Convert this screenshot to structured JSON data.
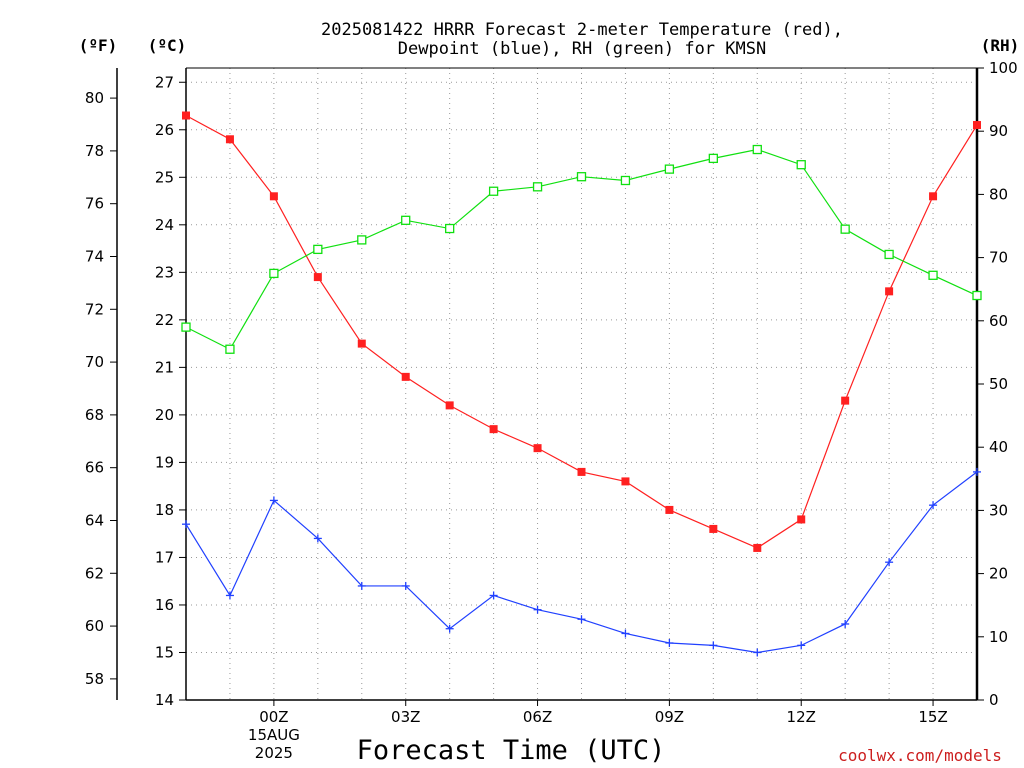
{
  "chart_data": {
    "type": "line",
    "title_line1": "2025081422 HRRR Forecast 2-meter Temperature (red),",
    "title_line2": "Dewpoint (blue), RH (green) for KMSN",
    "unit_f": "(ºF)",
    "unit_c": "(ºC)",
    "unit_rh": "(RH)",
    "xlabel": "Forecast Time (UTC)",
    "credit": "coolwx.com/models",
    "x_hours": [
      22,
      23,
      24,
      25,
      26,
      27,
      28,
      29,
      30,
      31,
      32,
      33,
      34,
      35,
      36,
      37,
      38,
      39,
      40
    ],
    "xlim": [
      22,
      40
    ],
    "x_ticks": [
      {
        "hour": 24,
        "label": "00Z",
        "sub1": "15AUG",
        "sub2": "2025"
      },
      {
        "hour": 27,
        "label": "03Z",
        "sub1": "",
        "sub2": ""
      },
      {
        "hour": 30,
        "label": "06Z",
        "sub1": "",
        "sub2": ""
      },
      {
        "hour": 33,
        "label": "09Z",
        "sub1": "",
        "sub2": ""
      },
      {
        "hour": 36,
        "label": "12Z",
        "sub1": "",
        "sub2": ""
      },
      {
        "hour": 39,
        "label": "15Z",
        "sub1": "",
        "sub2": ""
      }
    ],
    "celsius_axis": {
      "ylim": [
        14,
        27.3
      ],
      "ticks": [
        "14",
        "15",
        "16",
        "17",
        "18",
        "19",
        "20",
        "21",
        "22",
        "23",
        "24",
        "25",
        "26",
        "27"
      ]
    },
    "fahrenheit_axis": {
      "ticks": [
        "58",
        "60",
        "62",
        "64",
        "66",
        "68",
        "70",
        "72",
        "74",
        "76",
        "78",
        "80"
      ]
    },
    "rh_axis": {
      "ylim": [
        0,
        100
      ],
      "ticks": [
        "0",
        "10",
        "20",
        "30",
        "40",
        "50",
        "60",
        "70",
        "80",
        "90",
        "100"
      ]
    },
    "series": [
      {
        "name": "Temperature",
        "unit": "C",
        "color": "#ff2020",
        "marker": "filled-square",
        "values": [
          26.3,
          25.8,
          24.6,
          22.9,
          21.5,
          20.8,
          20.2,
          19.7,
          19.3,
          18.8,
          18.6,
          18.0,
          17.6,
          17.2,
          17.8,
          20.3,
          22.6,
          24.6,
          26.1
        ]
      },
      {
        "name": "Dewpoint",
        "unit": "C",
        "color": "#2040ff",
        "marker": "plus",
        "values": [
          17.7,
          16.2,
          18.2,
          17.4,
          16.4,
          16.4,
          15.5,
          16.2,
          15.9,
          15.7,
          15.4,
          15.2,
          15.15,
          15.0,
          15.15,
          15.6,
          16.9,
          18.1,
          18.8
        ]
      },
      {
        "name": "RH",
        "unit": "%",
        "color": "#10e010",
        "marker": "open-square",
        "values": [
          59,
          55.5,
          67.5,
          71.3,
          72.8,
          75.9,
          74.6,
          80.5,
          81.2,
          82.8,
          82.2,
          84,
          85.7,
          87.1,
          84.7,
          74.5,
          70.5,
          67.2,
          64
        ]
      }
    ],
    "grid": true
  }
}
